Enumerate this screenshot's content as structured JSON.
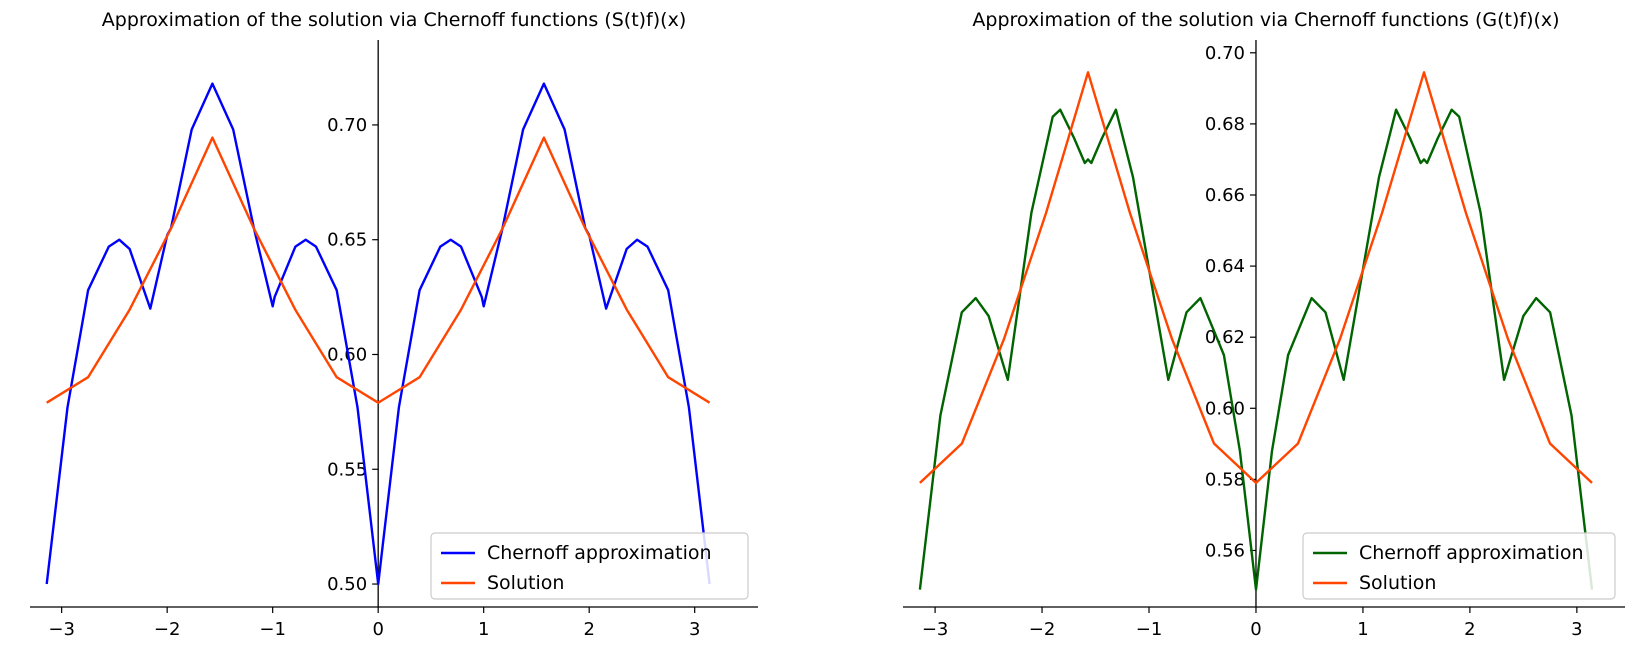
{
  "chart_data": [
    {
      "type": "line",
      "title": "Approximation of the solution via Chernoff functions (S(t)f)(x)",
      "xlim": [
        -3.3,
        3.6
      ],
      "ylim": [
        0.49,
        0.737
      ],
      "xticks": [
        -3,
        -2,
        -1,
        0,
        1,
        2,
        3
      ],
      "xtick_labels": [
        "−3",
        "−2",
        "−1",
        "0",
        "1",
        "2",
        "3"
      ],
      "yticks": [
        0.5,
        0.55,
        0.6,
        0.65,
        0.7
      ],
      "ytick_labels": [
        "0.50",
        "0.55",
        "0.60",
        "0.65",
        "0.70"
      ],
      "spines": "centered at origin",
      "grid": false,
      "legend_position": "lower right",
      "series": [
        {
          "name": "Chernoff approximation",
          "color": "#0000ff",
          "x": [
            -3.1416,
            -2.945,
            -2.749,
            -2.553,
            -2.4544,
            -2.356,
            -2.16,
            -2.0,
            -1.9635,
            -1.767,
            -1.5708,
            -1.374,
            -1.178,
            -1.0,
            -0.982,
            -0.785,
            -0.687,
            -0.589,
            -0.393,
            -0.196,
            0.0,
            0.196,
            0.393,
            0.589,
            0.687,
            0.785,
            0.982,
            1.0,
            1.178,
            1.374,
            1.5708,
            1.767,
            1.9635,
            2.0,
            2.16,
            2.356,
            2.4544,
            2.553,
            2.749,
            2.945,
            3.1416
          ],
          "y": [
            0.5,
            0.577,
            0.628,
            0.647,
            0.65,
            0.646,
            0.62,
            0.652,
            0.655,
            0.698,
            0.718,
            0.698,
            0.655,
            0.621,
            0.625,
            0.647,
            0.65,
            0.647,
            0.628,
            0.577,
            0.5,
            0.577,
            0.628,
            0.647,
            0.65,
            0.647,
            0.625,
            0.621,
            0.655,
            0.698,
            0.718,
            0.698,
            0.655,
            0.652,
            0.62,
            0.646,
            0.65,
            0.647,
            0.628,
            0.577,
            0.5
          ]
        },
        {
          "name": "Solution",
          "color": "#ff4500",
          "x": [
            -3.1416,
            -2.7489,
            -2.3562,
            -1.9635,
            -1.5708,
            -1.1781,
            -0.7854,
            -0.3927,
            0.0,
            0.3927,
            0.7854,
            1.1781,
            1.5708,
            1.9635,
            2.3562,
            2.7489,
            3.1416
          ],
          "y": [
            0.579,
            0.5901,
            0.6195,
            0.6549,
            0.6945,
            0.6549,
            0.6195,
            0.5901,
            0.579,
            0.5901,
            0.6195,
            0.6549,
            0.6945,
            0.6549,
            0.6195,
            0.5901,
            0.579
          ]
        }
      ]
    },
    {
      "type": "line",
      "title": "Approximation of the solution via Chernoff functions (G(t)f)(x)",
      "xlim": [
        -3.3,
        3.45
      ],
      "ylim": [
        0.5441,
        0.7036
      ],
      "xticks": [
        -3,
        -2,
        -1,
        0,
        1,
        2,
        3
      ],
      "xtick_labels": [
        "−3",
        "−2",
        "−1",
        "0",
        "1",
        "2",
        "3"
      ],
      "yticks": [
        0.56,
        0.58,
        0.6,
        0.62,
        0.64,
        0.66,
        0.68,
        0.7
      ],
      "ytick_labels": [
        "0.56",
        "0.58",
        "0.60",
        "0.62",
        "0.64",
        "0.66",
        "0.68",
        "0.70"
      ],
      "spines": "centered at origin",
      "grid": false,
      "legend_position": "lower right",
      "series": [
        {
          "name": "Chernoff approximation",
          "color": "#006400",
          "x": [
            -3.1416,
            -2.95,
            -2.75,
            -2.62,
            -2.5,
            -2.32,
            -2.1,
            -1.9,
            -1.83,
            -1.7,
            -1.6,
            -1.5708,
            -1.54,
            -1.44,
            -1.31,
            -1.15,
            -0.82,
            -0.65,
            -0.52,
            -0.3,
            -0.15,
            0.0,
            0.15,
            0.3,
            0.52,
            0.65,
            0.82,
            1.15,
            1.31,
            1.44,
            1.54,
            1.5708,
            1.6,
            1.7,
            1.83,
            1.9,
            2.1,
            2.32,
            2.5,
            2.62,
            2.75,
            2.95,
            3.1416
          ],
          "y": [
            0.549,
            0.598,
            0.627,
            0.631,
            0.626,
            0.608,
            0.655,
            0.682,
            0.684,
            0.676,
            0.669,
            0.67,
            0.669,
            0.676,
            0.684,
            0.665,
            0.608,
            0.627,
            0.631,
            0.615,
            0.588,
            0.549,
            0.588,
            0.615,
            0.631,
            0.627,
            0.608,
            0.665,
            0.684,
            0.676,
            0.669,
            0.67,
            0.669,
            0.676,
            0.684,
            0.682,
            0.655,
            0.608,
            0.626,
            0.631,
            0.627,
            0.598,
            0.549
          ]
        },
        {
          "name": "Solution",
          "color": "#ff4500",
          "x": [
            -3.1416,
            -2.7489,
            -2.3562,
            -1.9635,
            -1.5708,
            -1.1781,
            -0.7854,
            -0.3927,
            0.0,
            0.3927,
            0.7854,
            1.1781,
            1.5708,
            1.9635,
            2.3562,
            2.7489,
            3.1416
          ],
          "y": [
            0.579,
            0.5901,
            0.6195,
            0.6549,
            0.6945,
            0.6549,
            0.6195,
            0.5901,
            0.579,
            0.5901,
            0.6195,
            0.6549,
            0.6945,
            0.6549,
            0.6195,
            0.5901,
            0.579
          ]
        }
      ]
    }
  ]
}
